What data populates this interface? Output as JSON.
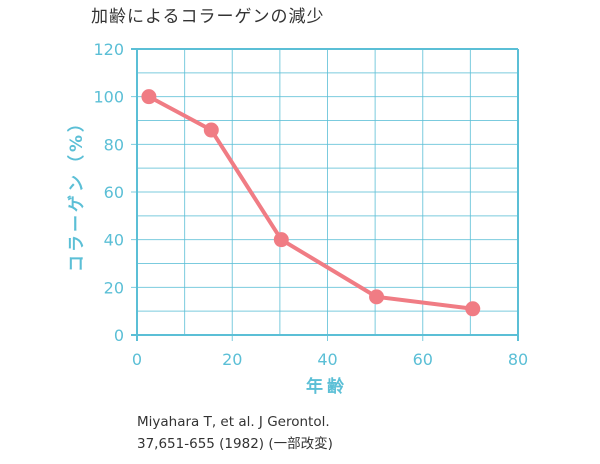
{
  "chart_data": {
    "type": "line",
    "title": "加齢によるコラーゲンの減少",
    "xlabel": "年齢",
    "ylabel": "コラーゲン（%）",
    "xlim": [
      0,
      80
    ],
    "ylim": [
      0,
      120
    ],
    "xticks": [
      "0",
      "20",
      "40",
      "60",
      "80"
    ],
    "yticks": [
      "0",
      "20",
      "40",
      "60",
      "80",
      "100",
      "120"
    ],
    "grid": true,
    "x": [
      2.5,
      15.6,
      30.3,
      50.3,
      70.5
    ],
    "y": [
      100,
      86,
      40,
      16,
      11
    ],
    "colors": {
      "axis": "#5bbfd6",
      "grid": "#5bbfd6",
      "line": "#f07c84"
    }
  },
  "source": {
    "line1": "Miyahara T, et al. J Gerontol.",
    "line2": "37,651-655 (1982) (一部改変)"
  }
}
